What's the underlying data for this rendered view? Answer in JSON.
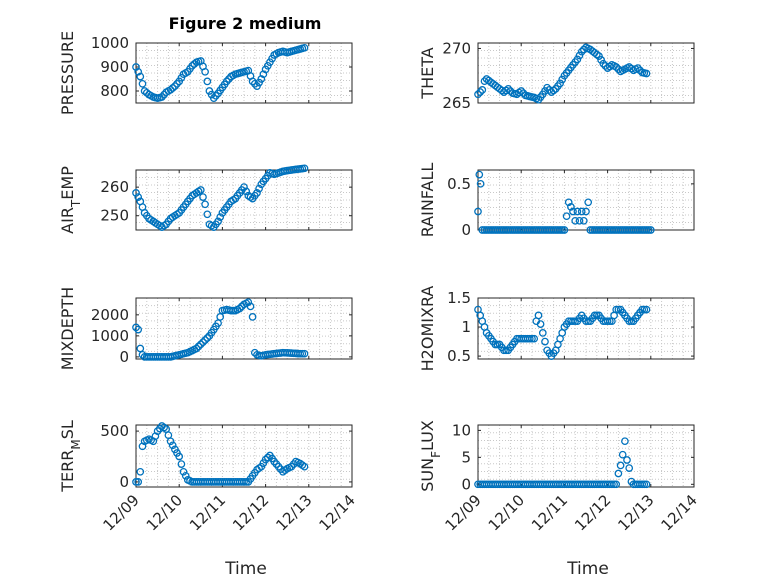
{
  "chart_data": [
    {
      "type": "scatter",
      "title": "Figure 2 medium",
      "ylabel": "PRESSURE",
      "xlabel": "",
      "xlim": [
        0,
        5
      ],
      "ylim": [
        750,
        1000
      ],
      "yticks": [
        800,
        900,
        1000
      ],
      "xticklabels": [],
      "legend": "none",
      "series": [
        {
          "name": "PRESSURE",
          "x": [
            0.0,
            0.1,
            0.2,
            0.3,
            0.4,
            0.5,
            0.6,
            0.7,
            0.8,
            0.9,
            1.0,
            1.1,
            1.2,
            1.3,
            1.4,
            1.5,
            1.6,
            1.7,
            1.8,
            1.85,
            1.9,
            2.0,
            2.1,
            2.2,
            2.3,
            2.4,
            2.5,
            2.6,
            2.7,
            2.8,
            2.9,
            3.0,
            3.1,
            3.2,
            3.3,
            3.4,
            3.5,
            3.6,
            3.7,
            3.8,
            3.9
          ],
          "values": [
            900,
            860,
            800,
            785,
            775,
            770,
            775,
            795,
            805,
            820,
            840,
            870,
            880,
            905,
            920,
            925,
            880,
            800,
            770,
            780,
            790,
            815,
            840,
            860,
            870,
            875,
            880,
            885,
            840,
            820,
            850,
            890,
            920,
            950,
            960,
            965,
            960,
            965,
            970,
            975,
            980
          ]
        }
      ]
    },
    {
      "type": "scatter",
      "ylabel": "THETA",
      "xlabel": "",
      "xlim": [
        0,
        5
      ],
      "ylim": [
        265,
        270.5
      ],
      "yticks": [
        265,
        270
      ],
      "xticklabels": [],
      "legend": "none",
      "series": [
        {
          "name": "THETA",
          "x": [
            0.0,
            0.1,
            0.15,
            0.2,
            0.3,
            0.4,
            0.5,
            0.6,
            0.7,
            0.8,
            0.9,
            1.0,
            1.1,
            1.2,
            1.3,
            1.4,
            1.5,
            1.6,
            1.7,
            1.8,
            1.9,
            2.0,
            2.1,
            2.2,
            2.3,
            2.4,
            2.5,
            2.6,
            2.7,
            2.8,
            2.9,
            3.0,
            3.1,
            3.2,
            3.3,
            3.4,
            3.5,
            3.6,
            3.7,
            3.8,
            3.9
          ],
          "values": [
            265.8,
            266.2,
            267.0,
            267.2,
            266.9,
            266.6,
            266.3,
            266.0,
            266.3,
            265.9,
            265.8,
            266.1,
            265.7,
            265.6,
            265.5,
            265.3,
            265.8,
            266.4,
            266.0,
            266.3,
            266.8,
            267.5,
            268.0,
            268.5,
            269.0,
            269.7,
            270.1,
            269.9,
            269.6,
            269.3,
            268.6,
            268.2,
            268.5,
            268.3,
            267.9,
            268.1,
            268.3,
            268.0,
            268.2,
            267.8,
            267.7
          ]
        }
      ]
    },
    {
      "type": "scatter",
      "ylabel": "AIR_TEMP",
      "xlabel": "",
      "xlim": [
        0,
        5
      ],
      "ylim": [
        245,
        266
      ],
      "yticks": [
        250,
        260
      ],
      "xticklabels": [],
      "legend": "none",
      "series": [
        {
          "name": "AIR_TEMP",
          "x": [
            0.0,
            0.1,
            0.2,
            0.3,
            0.4,
            0.5,
            0.6,
            0.7,
            0.8,
            0.9,
            1.0,
            1.1,
            1.2,
            1.3,
            1.4,
            1.5,
            1.6,
            1.7,
            1.8,
            1.9,
            2.0,
            2.1,
            2.2,
            2.3,
            2.4,
            2.5,
            2.6,
            2.7,
            2.8,
            2.9,
            3.0,
            3.1,
            3.2,
            3.3,
            3.4,
            3.5,
            3.6,
            3.7,
            3.8,
            3.9
          ],
          "values": [
            258,
            255,
            251,
            249,
            248,
            247,
            246,
            247,
            249,
            250,
            251,
            253,
            255,
            257,
            258,
            259,
            254,
            247,
            246,
            248,
            251,
            253,
            255,
            256,
            258,
            260,
            257,
            256,
            258,
            261,
            263,
            265,
            264.5,
            265,
            265.5,
            265.8,
            266,
            266.2,
            266.4,
            266.6
          ]
        }
      ]
    },
    {
      "type": "scatter",
      "ylabel": "RAINFALL",
      "xlabel": "",
      "xlim": [
        0,
        5
      ],
      "ylim": [
        0,
        0.65
      ],
      "yticks": [
        0,
        0.5
      ],
      "xticklabels": [],
      "legend": "none",
      "series": [
        {
          "name": "RAINFALL",
          "x": [
            0.0,
            0.03,
            0.06,
            0.1,
            0.2,
            0.4,
            0.6,
            0.8,
            1.0,
            1.2,
            1.4,
            1.6,
            1.8,
            2.0,
            2.1,
            2.2,
            2.25,
            2.3,
            2.35,
            2.4,
            2.45,
            2.5,
            2.55,
            2.6,
            2.65,
            2.7,
            2.8,
            3.0,
            3.2,
            3.4,
            3.6,
            3.8,
            4.0
          ],
          "values": [
            0.2,
            0.6,
            0.5,
            0,
            0,
            0,
            0,
            0,
            0,
            0,
            0,
            0,
            0,
            0,
            0.3,
            0.2,
            0.1,
            0.2,
            0.1,
            0.2,
            0.1,
            0.2,
            0.3,
            0,
            0,
            0,
            0,
            0,
            0,
            0,
            0,
            0,
            0
          ]
        }
      ]
    },
    {
      "type": "scatter",
      "ylabel": "MIXDEPTH",
      "xlabel": "",
      "xlim": [
        0,
        5
      ],
      "ylim": [
        -100,
        2800
      ],
      "yticks": [
        0,
        1000,
        2000
      ],
      "xticklabels": [],
      "legend": "none",
      "series": [
        {
          "name": "MIXDEPTH",
          "x": [
            0.0,
            0.05,
            0.1,
            0.15,
            0.2,
            0.4,
            0.6,
            0.8,
            1.0,
            1.2,
            1.4,
            1.5,
            1.6,
            1.7,
            1.8,
            1.9,
            2.0,
            2.1,
            2.2,
            2.3,
            2.4,
            2.5,
            2.6,
            2.65,
            2.7,
            2.75,
            2.8,
            2.9,
            3.0,
            3.2,
            3.4,
            3.6,
            3.8,
            3.9
          ],
          "values": [
            1400,
            1300,
            400,
            100,
            0,
            0,
            0,
            0,
            100,
            200,
            400,
            600,
            800,
            1000,
            1300,
            1600,
            2200,
            2250,
            2200,
            2200,
            2300,
            2500,
            2600,
            2400,
            1900,
            200,
            100,
            50,
            100,
            150,
            200,
            180,
            150,
            150
          ]
        }
      ]
    },
    {
      "type": "scatter",
      "ylabel": "H2OMIXRA",
      "xlabel": "",
      "xlim": [
        0,
        5
      ],
      "ylim": [
        0.45,
        1.5
      ],
      "yticks": [
        0.5,
        1,
        1.5
      ],
      "xticklabels": [],
      "legend": "none",
      "series": [
        {
          "name": "H2OMIXRA",
          "x": [
            0.0,
            0.05,
            0.1,
            0.2,
            0.3,
            0.4,
            0.5,
            0.6,
            0.7,
            0.8,
            0.9,
            1.0,
            1.1,
            1.2,
            1.3,
            1.35,
            1.4,
            1.5,
            1.6,
            1.7,
            1.8,
            1.9,
            2.0,
            2.1,
            2.2,
            2.3,
            2.4,
            2.5,
            2.6,
            2.7,
            2.8,
            2.9,
            3.0,
            3.1,
            3.2,
            3.3,
            3.4,
            3.5,
            3.6,
            3.7,
            3.8,
            3.9
          ],
          "values": [
            1.3,
            1.2,
            1.1,
            0.9,
            0.8,
            0.7,
            0.7,
            0.6,
            0.6,
            0.7,
            0.8,
            0.8,
            0.8,
            0.8,
            0.8,
            1.1,
            1.2,
            0.9,
            0.6,
            0.5,
            0.6,
            0.8,
            1.0,
            1.1,
            1.1,
            1.1,
            1.2,
            1.1,
            1.1,
            1.2,
            1.2,
            1.1,
            1.1,
            1.1,
            1.3,
            1.3,
            1.2,
            1.1,
            1.1,
            1.2,
            1.3,
            1.3
          ]
        }
      ]
    },
    {
      "type": "scatter",
      "ylabel": "TERR_MSL",
      "xlabel": "Time",
      "xlim": [
        0,
        5
      ],
      "ylim": [
        -50,
        560
      ],
      "yticks": [
        0,
        500
      ],
      "xticklabels": [
        "12/09",
        "12/10",
        "12/11",
        "12/12",
        "12/13",
        "12/14"
      ],
      "legend": "none",
      "series": [
        {
          "name": "TERR_MSL",
          "x": [
            0.0,
            0.05,
            0.1,
            0.15,
            0.2,
            0.3,
            0.4,
            0.5,
            0.6,
            0.7,
            0.8,
            0.9,
            1.0,
            1.1,
            1.2,
            1.3,
            1.4,
            1.6,
            1.8,
            2.0,
            2.2,
            2.4,
            2.6,
            2.8,
            2.9,
            3.0,
            3.1,
            3.2,
            3.3,
            3.4,
            3.5,
            3.6,
            3.7,
            3.8,
            3.9
          ],
          "values": [
            0,
            0,
            100,
            350,
            400,
            420,
            400,
            500,
            550,
            520,
            400,
            320,
            250,
            100,
            20,
            0,
            0,
            0,
            0,
            0,
            0,
            0,
            0,
            120,
            150,
            220,
            260,
            200,
            150,
            100,
            130,
            150,
            200,
            180,
            150
          ]
        }
      ]
    },
    {
      "type": "scatter",
      "ylabel": "SUN_FLUX",
      "xlabel": "Time",
      "xlim": [
        0,
        5
      ],
      "ylim": [
        -0.5,
        11
      ],
      "yticks": [
        0,
        5,
        10
      ],
      "xticklabels": [
        "12/09",
        "12/10",
        "12/11",
        "12/12",
        "12/13",
        "12/14"
      ],
      "legend": "none",
      "series": [
        {
          "name": "SUN_FLUX",
          "x": [
            0.0,
            0.3,
            0.6,
            0.9,
            1.2,
            1.5,
            1.8,
            2.1,
            2.4,
            2.7,
            3.0,
            3.2,
            3.25,
            3.3,
            3.35,
            3.4,
            3.45,
            3.5,
            3.55,
            3.6,
            3.7,
            3.8,
            3.9
          ],
          "values": [
            0,
            0,
            0,
            0,
            0,
            0,
            0,
            0,
            0,
            0,
            0,
            0,
            2,
            3.5,
            5.5,
            8,
            4.5,
            3,
            0.5,
            0,
            0,
            0,
            0
          ]
        }
      ]
    }
  ]
}
